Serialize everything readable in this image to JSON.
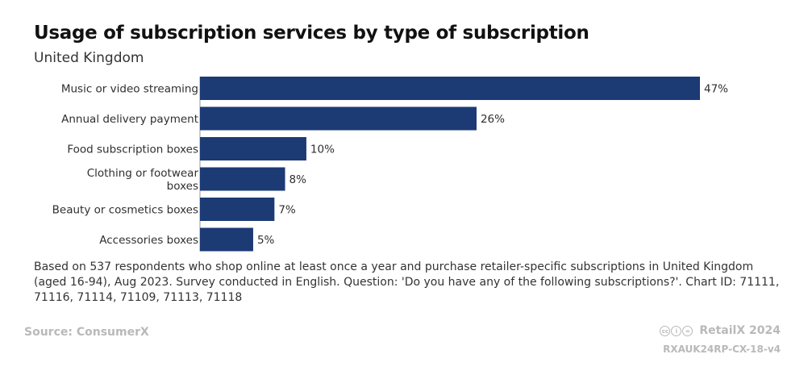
{
  "chart_data": {
    "type": "bar",
    "orientation": "horizontal",
    "title": "Usage of subscription services by type of subscription",
    "subtitle": "United Kingdom",
    "categories": [
      "Music or video streaming",
      "Annual delivery payment",
      "Food subscription boxes",
      "Clothing or footwear boxes",
      "Beauty or cosmetics boxes",
      "Accessories boxes"
    ],
    "values": [
      47,
      26,
      10,
      8,
      7,
      5
    ],
    "value_suffix": "%",
    "xlim": [
      0,
      50
    ],
    "bar_color": "#1c3a74",
    "grid": false
  },
  "note": "Based on 537 respondents who shop online at least once a year and purchase retailer-specific subscriptions in United Kingdom (aged 16-94), Aug 2023. Survey conducted in English. Question: 'Do you have any of the following subscriptions?'. Chart ID: 71111, 71116, 71114, 71109, 71113, 71118",
  "footer": {
    "source": "Source: ConsumerX",
    "brand": "RetailX 2024",
    "chart_id": "RXAUK24RP-CX-18-v4",
    "license_icons": [
      "cc",
      "by",
      "nd"
    ]
  }
}
